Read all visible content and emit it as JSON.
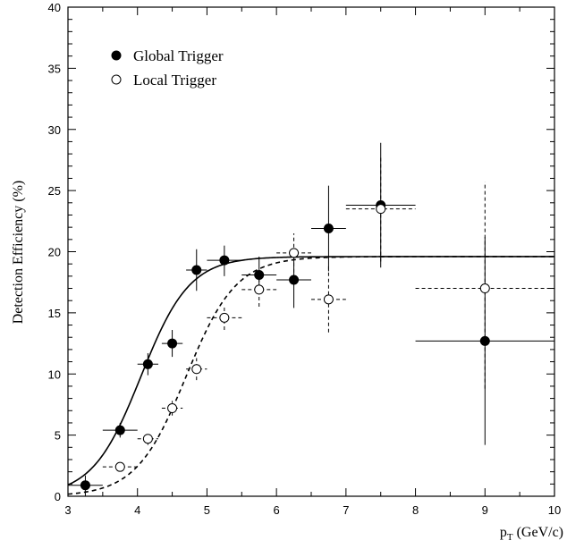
{
  "chart_data": {
    "type": "scatter",
    "title": "",
    "xlabel_main": "p",
    "xlabel_sub": "T",
    "xlabel_unit": " (GeV/c)",
    "ylabel": "Detection Efficiency (%)",
    "xlim": [
      3,
      10
    ],
    "ylim": [
      0,
      40
    ],
    "x_ticks": [
      3,
      4,
      5,
      6,
      7,
      8,
      9,
      10
    ],
    "y_ticks": [
      0,
      5,
      10,
      15,
      20,
      25,
      30,
      35,
      40
    ],
    "grid": false,
    "legend_position": "top-left",
    "series": [
      {
        "name": "Global Trigger",
        "marker": "filled-circle",
        "line_style": "solid",
        "points": [
          {
            "x": 3.25,
            "y": 0.9,
            "xerr": 0.25,
            "yerr_lo": 0.9,
            "yerr_hi": 0.8
          },
          {
            "x": 3.75,
            "y": 5.4,
            "xerr": 0.25,
            "yerr_lo": 0.6,
            "yerr_hi": 0.6
          },
          {
            "x": 4.15,
            "y": 10.8,
            "xerr": 0.15,
            "yerr_lo": 0.9,
            "yerr_hi": 0.9
          },
          {
            "x": 4.5,
            "y": 12.5,
            "xerr": 0.15,
            "yerr_lo": 1.1,
            "yerr_hi": 1.1
          },
          {
            "x": 4.85,
            "y": 18.5,
            "xerr": 0.15,
            "yerr_lo": 1.7,
            "yerr_hi": 1.7
          },
          {
            "x": 5.25,
            "y": 19.3,
            "xerr": 0.25,
            "yerr_lo": 1.3,
            "yerr_hi": 1.2
          },
          {
            "x": 5.75,
            "y": 18.1,
            "xerr": 0.25,
            "yerr_lo": 1.6,
            "yerr_hi": 1.5
          },
          {
            "x": 6.25,
            "y": 17.7,
            "xerr": 0.25,
            "yerr_lo": 2.3,
            "yerr_hi": 2.3
          },
          {
            "x": 6.75,
            "y": 21.9,
            "xerr": 0.25,
            "yerr_lo": 3.5,
            "yerr_hi": 3.5
          },
          {
            "x": 7.5,
            "y": 23.8,
            "xerr": 0.5,
            "yerr_lo": 5.1,
            "yerr_hi": 5.1
          },
          {
            "x": 9.0,
            "y": 12.7,
            "xerr": 1.0,
            "yerr_lo": 8.5,
            "yerr_hi": 8.5
          }
        ]
      },
      {
        "name": "Local Trigger",
        "marker": "open-circle",
        "line_style": "dashed",
        "points": [
          {
            "x": 3.75,
            "y": 2.4,
            "xerr": 0.25,
            "yerr_lo": 0.35,
            "yerr_hi": 0.35
          },
          {
            "x": 4.15,
            "y": 4.7,
            "xerr": 0.15,
            "yerr_lo": 0.5,
            "yerr_hi": 0.5
          },
          {
            "x": 4.5,
            "y": 7.2,
            "xerr": 0.15,
            "yerr_lo": 0.6,
            "yerr_hi": 0.6
          },
          {
            "x": 4.85,
            "y": 10.4,
            "xerr": 0.15,
            "yerr_lo": 0.9,
            "yerr_hi": 0.9
          },
          {
            "x": 5.25,
            "y": 14.6,
            "xerr": 0.25,
            "yerr_lo": 1.0,
            "yerr_hi": 1.0
          },
          {
            "x": 5.75,
            "y": 16.9,
            "xerr": 0.25,
            "yerr_lo": 1.4,
            "yerr_hi": 1.4
          },
          {
            "x": 6.25,
            "y": 19.9,
            "xerr": 0.25,
            "yerr_lo": 1.6,
            "yerr_hi": 1.6
          },
          {
            "x": 6.75,
            "y": 16.1,
            "xerr": 0.25,
            "yerr_lo": 2.7,
            "yerr_hi": 2.7
          },
          {
            "x": 7.5,
            "y": 23.5,
            "xerr": 0.5,
            "yerr_lo": 4.3,
            "yerr_hi": 4.3
          },
          {
            "x": 9.0,
            "y": 17.0,
            "xerr": 1.0,
            "yerr_lo": 8.2,
            "yerr_hi": 8.7
          }
        ]
      }
    ],
    "fit_curves": [
      {
        "series": "Global Trigger",
        "line_style": "solid",
        "plateau": 19.6,
        "midpoint": 4.05,
        "width": 0.35
      },
      {
        "series": "Local Trigger",
        "line_style": "dashed",
        "plateau": 19.6,
        "midpoint": 4.7,
        "width": 0.36
      }
    ]
  }
}
